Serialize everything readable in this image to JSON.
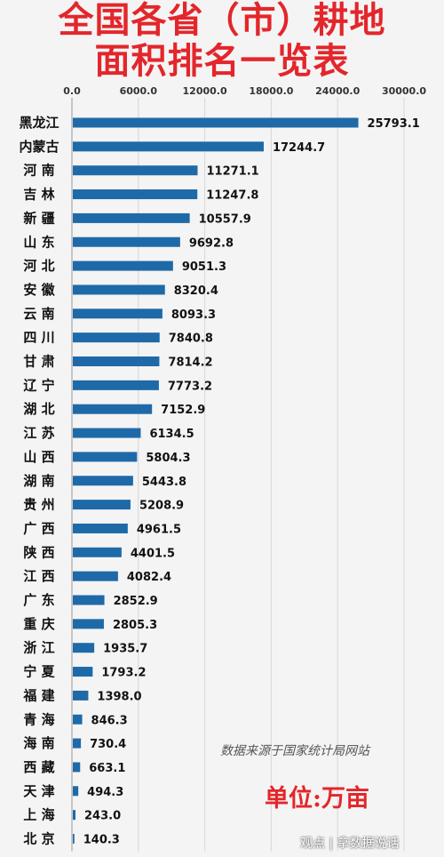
{
  "header": {
    "title_line1": "全国各省（市）耕地",
    "title_line2": "面积排名一览表"
  },
  "footer": {
    "source_note": "数据来源于国家统计局网站",
    "unit_label": "单位:万亩",
    "watermark": "观点 | 拿数据说话"
  },
  "colors": {
    "bar": "#1e6aa8",
    "title": "#e3262b"
  },
  "chart_data": {
    "type": "bar",
    "orientation": "horizontal",
    "title": "全国各省（市）耕地面积排名一览表",
    "xlim": [
      0,
      30000
    ],
    "x_ticks": [
      "0.0",
      "6000.0",
      "12000.0",
      "18000.0",
      "24000.0",
      "30000.0"
    ],
    "x_tick_values": [
      0,
      6000,
      12000,
      18000,
      24000,
      30000
    ],
    "axis_position": "top",
    "grid": true,
    "categories": [
      "黑龙江",
      "内蒙古",
      "河 南",
      "吉 林",
      "新 疆",
      "山 东",
      "河 北",
      "安 徽",
      "云 南",
      "四 川",
      "甘 肃",
      "辽 宁",
      "湖 北",
      "江 苏",
      "山 西",
      "湖 南",
      "贵 州",
      "广 西",
      "陕 西",
      "江 西",
      "广 东",
      "重 庆",
      "浙 江",
      "宁 夏",
      "福 建",
      "青 海",
      "海 南",
      "西 藏",
      "天 津",
      "上 海",
      "北 京"
    ],
    "values": [
      25793.1,
      17244.7,
      11271.1,
      11247.8,
      10557.9,
      9692.8,
      9051.3,
      8320.4,
      8093.3,
      7840.8,
      7814.2,
      7773.2,
      7152.9,
      6134.5,
      5804.3,
      5443.8,
      5208.9,
      4961.5,
      4401.5,
      4082.4,
      2852.9,
      2805.3,
      1935.7,
      1793.2,
      1398.0,
      846.3,
      730.4,
      663.1,
      494.3,
      243.0,
      140.3
    ],
    "value_labels": [
      "25793.1",
      "17244.7",
      "11271.1",
      "11247.8",
      "10557.9",
      "9692.8",
      "9051.3",
      "8320.4",
      "8093.3",
      "7840.8",
      "7814.2",
      "7773.2",
      "7152.9",
      "6134.5",
      "5804.3",
      "5443.8",
      "5208.9",
      "4961.5",
      "4401.5",
      "4082.4",
      "2852.9",
      "2805.3",
      "1935.7",
      "1793.2",
      "1398.0",
      "846.3",
      "730.4",
      "663.1",
      "494.3",
      "243.0",
      "140.3"
    ]
  }
}
